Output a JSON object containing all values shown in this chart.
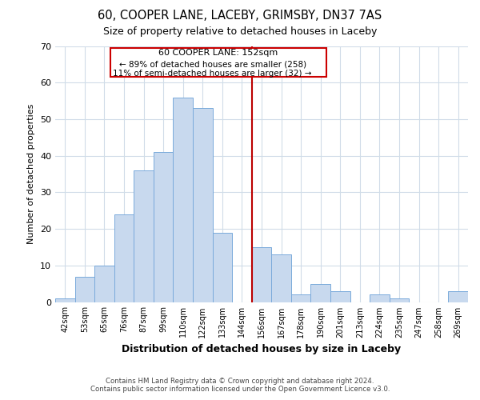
{
  "title": "60, COOPER LANE, LACEBY, GRIMSBY, DN37 7AS",
  "subtitle": "Size of property relative to detached houses in Laceby",
  "xlabel": "Distribution of detached houses by size in Laceby",
  "ylabel": "Number of detached properties",
  "bar_labels": [
    "42sqm",
    "53sqm",
    "65sqm",
    "76sqm",
    "87sqm",
    "99sqm",
    "110sqm",
    "122sqm",
    "133sqm",
    "144sqm",
    "156sqm",
    "167sqm",
    "178sqm",
    "190sqm",
    "201sqm",
    "213sqm",
    "224sqm",
    "235sqm",
    "247sqm",
    "258sqm",
    "269sqm"
  ],
  "bar_values": [
    1,
    7,
    10,
    24,
    36,
    41,
    56,
    53,
    19,
    0,
    15,
    13,
    2,
    5,
    3,
    0,
    2,
    1,
    0,
    0,
    3
  ],
  "bar_color": "#c8d9ee",
  "bar_edge_color": "#7aaadb",
  "ylim": [
    0,
    70
  ],
  "yticks": [
    0,
    10,
    20,
    30,
    40,
    50,
    60,
    70
  ],
  "vline_x_idx": 10,
  "vline_color": "#bb0000",
  "annotation_title": "60 COOPER LANE: 152sqm",
  "annotation_line1": "← 89% of detached houses are smaller (258)",
  "annotation_line2": "11% of semi-detached houses are larger (32) →",
  "annotation_box_color": "#ffffff",
  "annotation_box_edge": "#cc0000",
  "footer_line1": "Contains HM Land Registry data © Crown copyright and database right 2024.",
  "footer_line2": "Contains public sector information licensed under the Open Government Licence v3.0.",
  "background_color": "#ffffff",
  "grid_color": "#d0dce8"
}
